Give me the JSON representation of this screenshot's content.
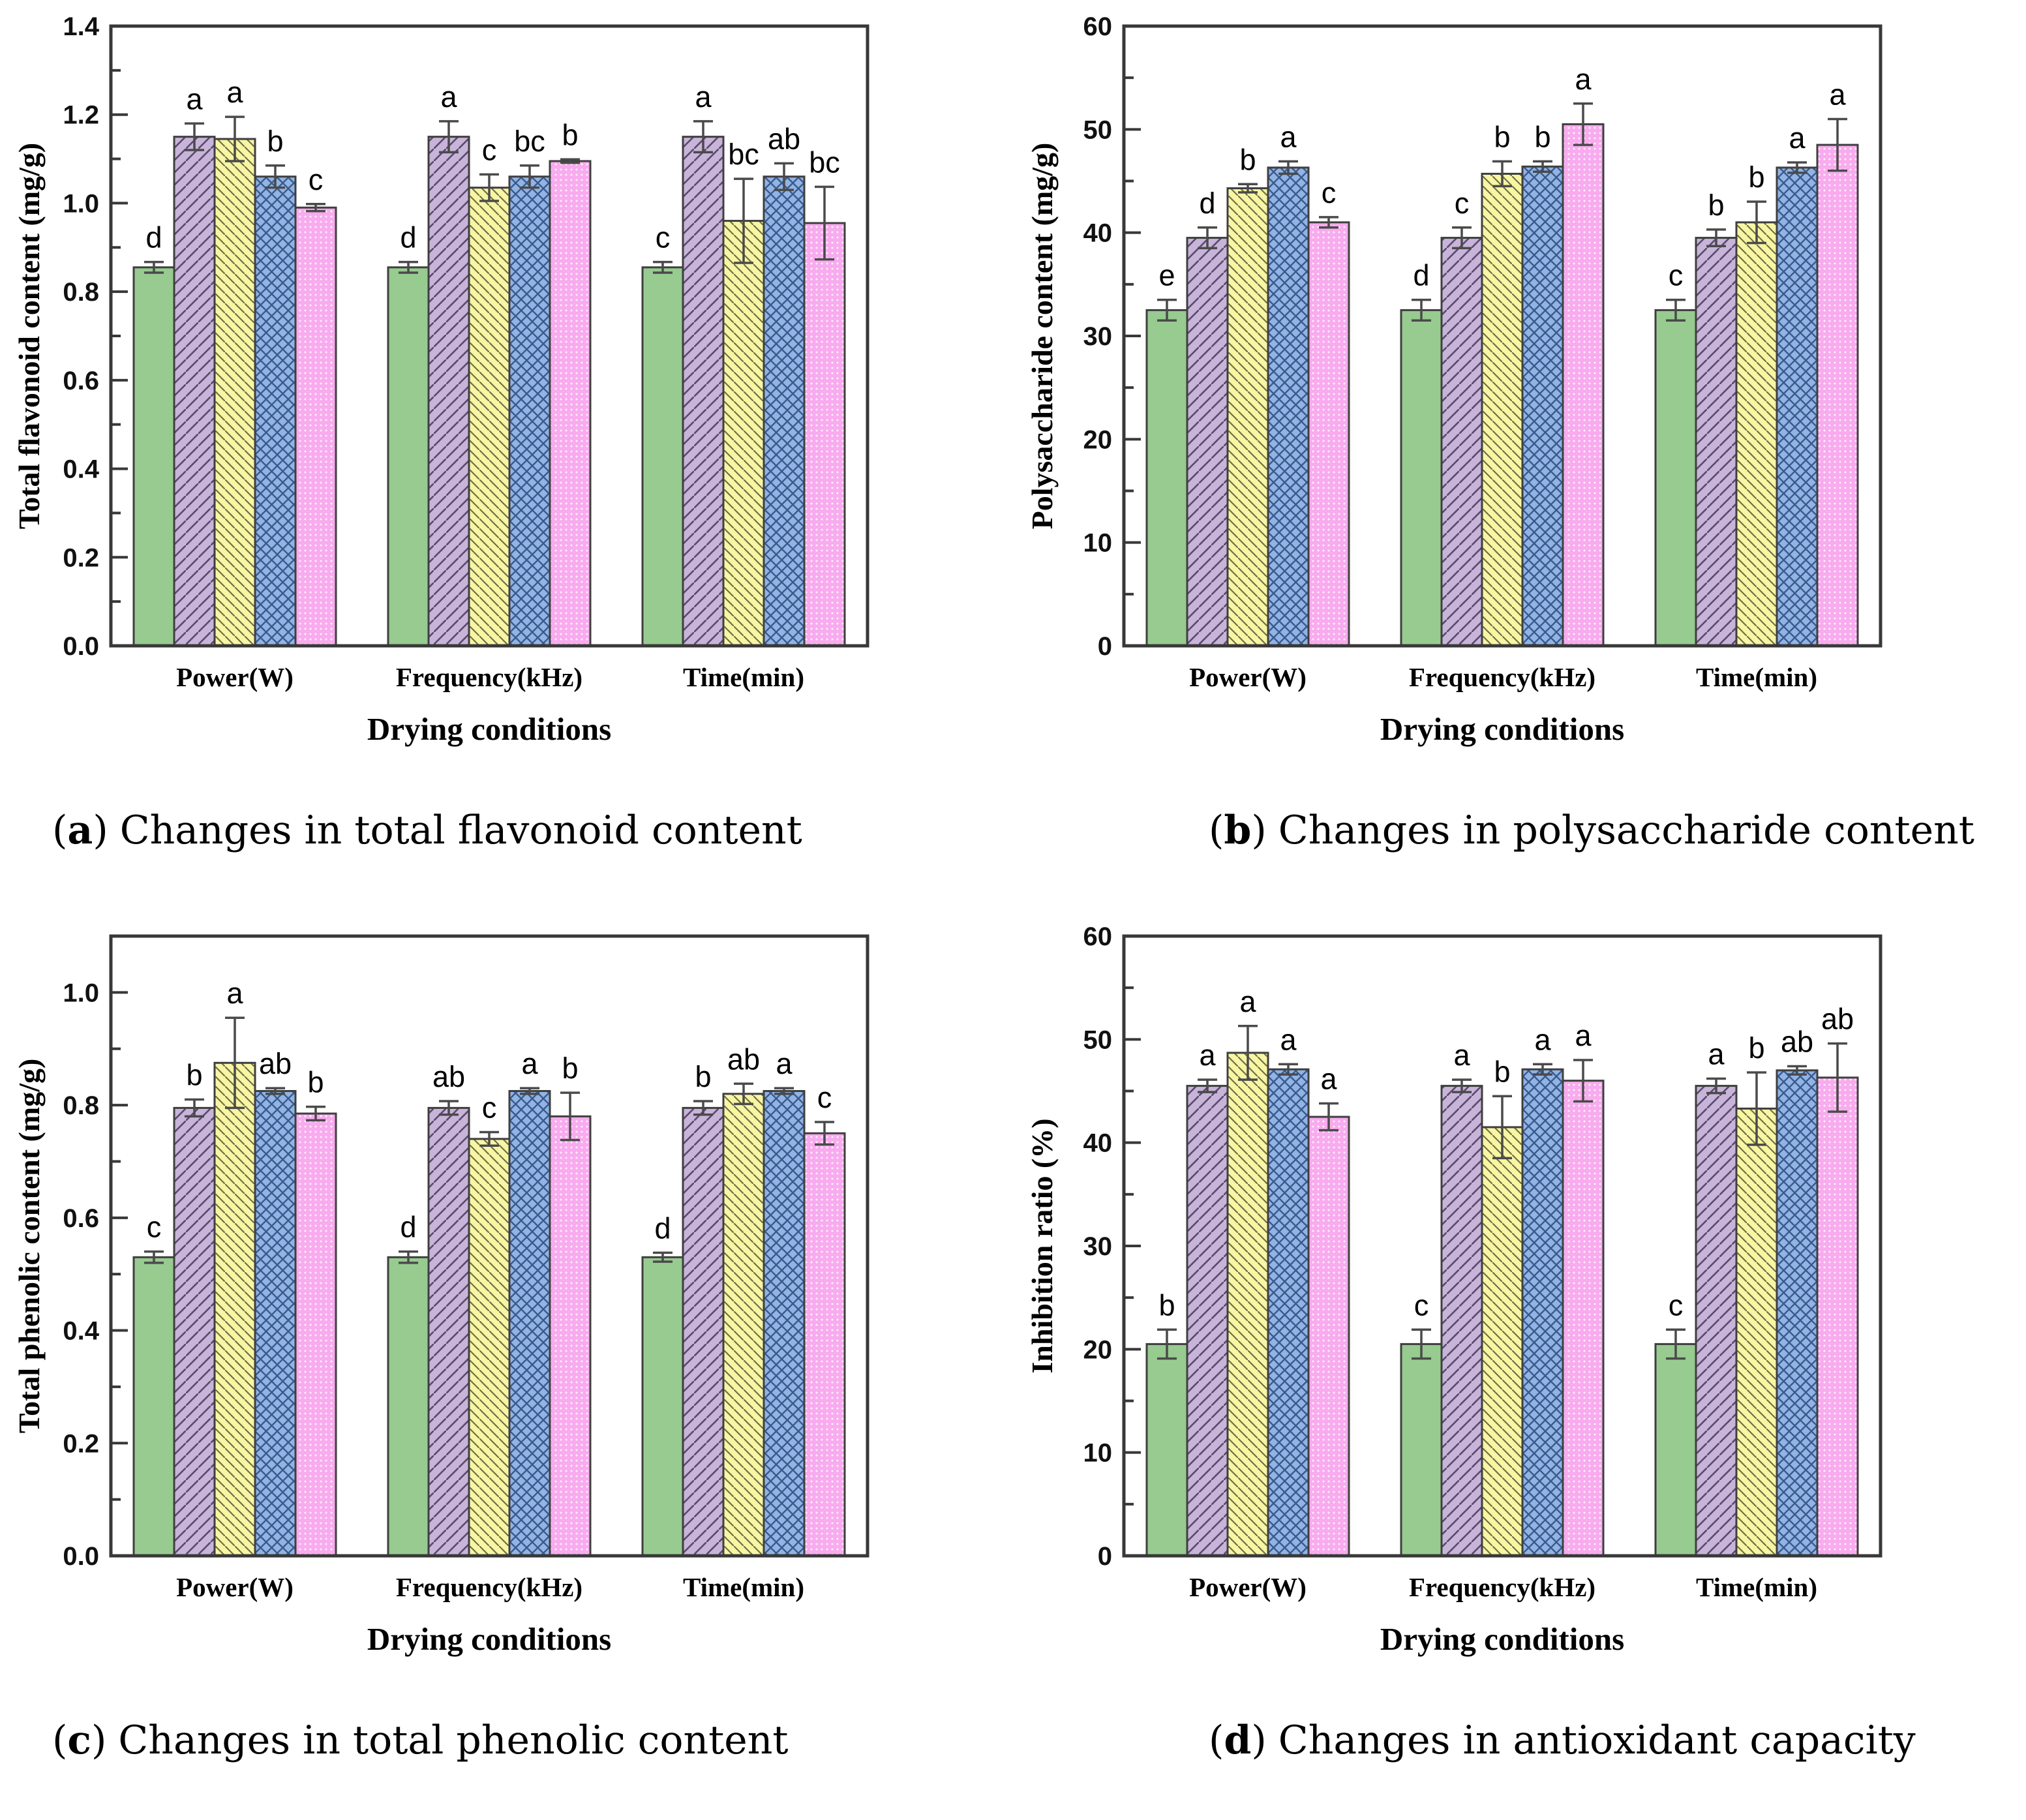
{
  "figure": {
    "type": "scientific-figure",
    "panels": [
      "a",
      "b",
      "c",
      "d"
    ]
  },
  "styles": {
    "background": "#ffffff",
    "spine_color": "#383838",
    "bar_outline": "#3f3f3f",
    "error_bar_color": "#4a4a4a",
    "text_color": "#000000",
    "series": [
      {
        "name": "green-solid",
        "fill": "#97CB90",
        "pattern": "solid"
      },
      {
        "name": "purple-diagonal-up-hatch",
        "fill": "#C8B4D9",
        "pattern": "diag-up",
        "line": "#5a4a6e",
        "lw": 2.6,
        "size": 19
      },
      {
        "name": "yellow-diagonal-down-hatch",
        "fill": "#F8F6A3",
        "pattern": "diag-down",
        "line": "#6f6f48",
        "lw": 2.2,
        "size": 15
      },
      {
        "name": "blue-crosshatch",
        "fill": "#92B4E4",
        "pattern": "cross",
        "line": "#3a5a8e",
        "lw": 2.4,
        "size": 17
      },
      {
        "name": "pink-dots",
        "fill": "#F8ABEE",
        "pattern": "dots",
        "dot": "#ffffff",
        "r": 1.5,
        "size": 8
      }
    ]
  },
  "chart_data": [
    {
      "id": "a",
      "type": "bar",
      "caption": {
        "open": "(",
        "letter": "a",
        "close": ")",
        "text": "Changes in total flavonoid content"
      },
      "ylabel": "Total flavonoid content (mg/g)",
      "xlabel": "Drying conditions",
      "categories": [
        "Power(W)",
        "Frequency(kHz)",
        "Time(min)"
      ],
      "ylim": [
        0,
        1.4
      ],
      "ytick_major": 0.2,
      "ytick_minor": 0.1,
      "tick_decimals": 1,
      "grid": false,
      "legend": "none",
      "groups": [
        {
          "category": "Power(W)",
          "bars": [
            {
              "value": 0.855,
              "error": 0.012,
              "label": "d"
            },
            {
              "value": 1.15,
              "error": 0.03,
              "label": "a"
            },
            {
              "value": 1.145,
              "error": 0.05,
              "label": "a"
            },
            {
              "value": 1.06,
              "error": 0.025,
              "label": "b"
            },
            {
              "value": 0.99,
              "error": 0.008,
              "label": "c"
            }
          ]
        },
        {
          "category": "Frequency(kHz)",
          "bars": [
            {
              "value": 0.855,
              "error": 0.012,
              "label": "d"
            },
            {
              "value": 1.15,
              "error": 0.035,
              "label": "a"
            },
            {
              "value": 1.035,
              "error": 0.03,
              "label": "c"
            },
            {
              "value": 1.06,
              "error": 0.025,
              "label": "bc"
            },
            {
              "value": 1.095,
              "error": 0.004,
              "label": "b"
            }
          ]
        },
        {
          "category": "Time(min)",
          "bars": [
            {
              "value": 0.855,
              "error": 0.012,
              "label": "c"
            },
            {
              "value": 1.15,
              "error": 0.035,
              "label": "a"
            },
            {
              "value": 0.96,
              "error": 0.095,
              "label": "bc"
            },
            {
              "value": 1.06,
              "error": 0.03,
              "label": "ab"
            },
            {
              "value": 0.955,
              "error": 0.082,
              "label": "bc"
            }
          ]
        }
      ]
    },
    {
      "id": "b",
      "type": "bar",
      "caption": {
        "open": "(",
        "letter": "b",
        "close": ")",
        "text": "Changes in polysaccharide content"
      },
      "ylabel": "Polysaccharide content (mg/g)",
      "xlabel": "Drying conditions",
      "categories": [
        "Power(W)",
        "Frequency(kHz)",
        "Time(min)"
      ],
      "ylim": [
        0,
        60
      ],
      "ytick_major": 10,
      "ytick_minor": 5,
      "tick_decimals": 0,
      "grid": false,
      "legend": "none",
      "groups": [
        {
          "category": "Power(W)",
          "bars": [
            {
              "value": 32.5,
              "error": 1.0,
              "label": "e"
            },
            {
              "value": 39.5,
              "error": 1.0,
              "label": "d"
            },
            {
              "value": 44.3,
              "error": 0.4,
              "label": "b"
            },
            {
              "value": 46.3,
              "error": 0.6,
              "label": "a"
            },
            {
              "value": 41.0,
              "error": 0.5,
              "label": "c"
            }
          ]
        },
        {
          "category": "Frequency(kHz)",
          "bars": [
            {
              "value": 32.5,
              "error": 1.0,
              "label": "d"
            },
            {
              "value": 39.5,
              "error": 1.0,
              "label": "c"
            },
            {
              "value": 45.7,
              "error": 1.2,
              "label": "b"
            },
            {
              "value": 46.4,
              "error": 0.5,
              "label": "b"
            },
            {
              "value": 50.5,
              "error": 2.0,
              "label": "a"
            }
          ]
        },
        {
          "category": "Time(min)",
          "bars": [
            {
              "value": 32.5,
              "error": 1.0,
              "label": "c"
            },
            {
              "value": 39.5,
              "error": 0.8,
              "label": "b"
            },
            {
              "value": 41.0,
              "error": 2.0,
              "label": "b"
            },
            {
              "value": 46.3,
              "error": 0.5,
              "label": "a"
            },
            {
              "value": 48.5,
              "error": 2.5,
              "label": "a"
            }
          ]
        }
      ]
    },
    {
      "id": "c",
      "type": "bar",
      "caption": {
        "open": "(",
        "letter": "c",
        "close": ")",
        "text": "Changes in total phenolic content"
      },
      "ylabel": "Total phenolic content (mg/g)",
      "xlabel": "Drying conditions",
      "categories": [
        "Power(W)",
        "Frequency(kHz)",
        "Time(min)"
      ],
      "ylim": [
        0,
        1.1
      ],
      "ytick_major": 0.2,
      "ytick_minor": 0.1,
      "tick_decimals": 1,
      "grid": false,
      "legend": "none",
      "groups": [
        {
          "category": "Power(W)",
          "bars": [
            {
              "value": 0.53,
              "error": 0.01,
              "label": "c"
            },
            {
              "value": 0.795,
              "error": 0.015,
              "label": "b"
            },
            {
              "value": 0.875,
              "error": 0.08,
              "label": "a"
            },
            {
              "value": 0.825,
              "error": 0.005,
              "label": "ab"
            },
            {
              "value": 0.785,
              "error": 0.012,
              "label": "b"
            }
          ]
        },
        {
          "category": "Frequency(kHz)",
          "bars": [
            {
              "value": 0.53,
              "error": 0.01,
              "label": "d"
            },
            {
              "value": 0.795,
              "error": 0.012,
              "label": "ab"
            },
            {
              "value": 0.74,
              "error": 0.012,
              "label": "c"
            },
            {
              "value": 0.825,
              "error": 0.005,
              "label": "a"
            },
            {
              "value": 0.78,
              "error": 0.042,
              "label": "b"
            }
          ]
        },
        {
          "category": "Time(min)",
          "bars": [
            {
              "value": 0.53,
              "error": 0.008,
              "label": "d"
            },
            {
              "value": 0.795,
              "error": 0.012,
              "label": "b"
            },
            {
              "value": 0.82,
              "error": 0.018,
              "label": "ab"
            },
            {
              "value": 0.825,
              "error": 0.005,
              "label": "a"
            },
            {
              "value": 0.75,
              "error": 0.02,
              "label": "c"
            }
          ]
        }
      ]
    },
    {
      "id": "d",
      "type": "bar",
      "caption": {
        "open": "(",
        "letter": "d",
        "close": ")",
        "text": "Changes in antioxidant capacity"
      },
      "ylabel": "Inhibition ratio (%)",
      "xlabel": "Drying conditions",
      "categories": [
        "Power(W)",
        "Frequency(kHz)",
        "Time(min)"
      ],
      "ylim": [
        0,
        60
      ],
      "ytick_major": 10,
      "ytick_minor": 5,
      "tick_decimals": 0,
      "grid": false,
      "legend": "none",
      "groups": [
        {
          "category": "Power(W)",
          "bars": [
            {
              "value": 20.5,
              "error": 1.4,
              "label": "b"
            },
            {
              "value": 45.5,
              "error": 0.6,
              "label": "a"
            },
            {
              "value": 48.7,
              "error": 2.6,
              "label": "a"
            },
            {
              "value": 47.1,
              "error": 0.5,
              "label": "a"
            },
            {
              "value": 42.5,
              "error": 1.3,
              "label": "a"
            }
          ]
        },
        {
          "category": "Frequency(kHz)",
          "bars": [
            {
              "value": 20.5,
              "error": 1.4,
              "label": "c"
            },
            {
              "value": 45.5,
              "error": 0.6,
              "label": "a"
            },
            {
              "value": 41.5,
              "error": 3.0,
              "label": "b"
            },
            {
              "value": 47.1,
              "error": 0.5,
              "label": "a"
            },
            {
              "value": 46.0,
              "error": 2.0,
              "label": "a"
            }
          ]
        },
        {
          "category": "Time(min)",
          "bars": [
            {
              "value": 20.5,
              "error": 1.4,
              "label": "c"
            },
            {
              "value": 45.5,
              "error": 0.7,
              "label": "a"
            },
            {
              "value": 43.3,
              "error": 3.5,
              "label": "b"
            },
            {
              "value": 47.0,
              "error": 0.4,
              "label": "ab"
            },
            {
              "value": 46.3,
              "error": 3.3,
              "label": "ab"
            }
          ]
        }
      ]
    }
  ]
}
